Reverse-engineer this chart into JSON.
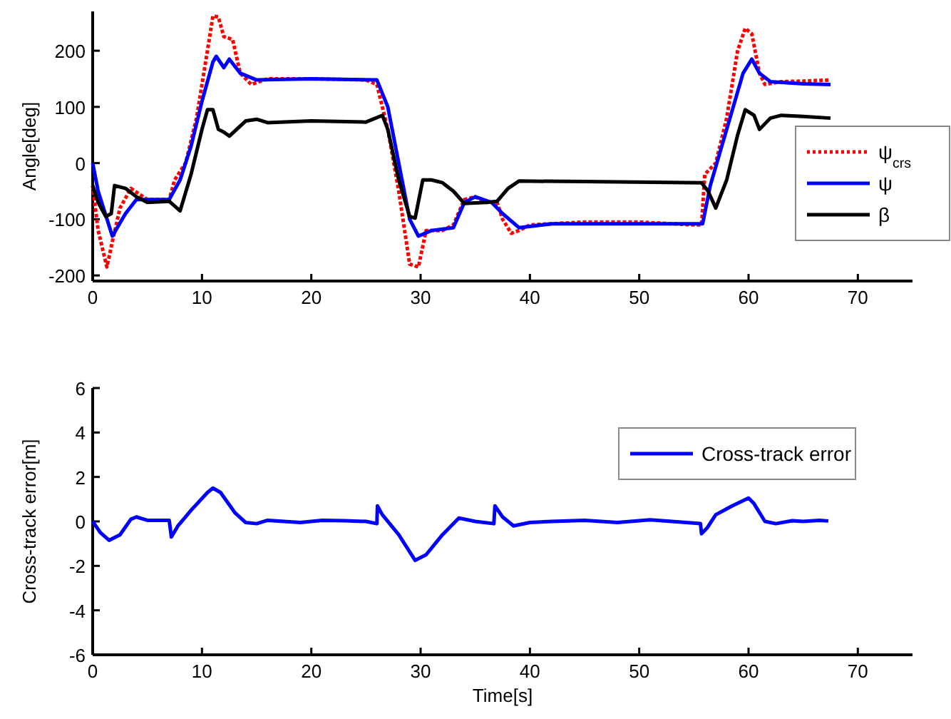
{
  "chart_data": [
    {
      "type": "line",
      "ylabel": "Angle[deg]",
      "xlim": [
        0,
        75
      ],
      "ylim": [
        -210,
        270
      ],
      "xticks": [
        0,
        10,
        20,
        30,
        40,
        50,
        60,
        70
      ],
      "yticks": [
        -200,
        -100,
        0,
        100,
        200
      ],
      "legend": "right",
      "series": [
        {
          "name": "ψ$_{crs}$",
          "color": "#ff0000",
          "line_style": "dotted",
          "x": [
            0,
            0.5,
            1.3,
            1.8,
            2.5,
            3.5,
            5,
            7,
            7.5,
            8.5,
            9.5,
            10.5,
            11,
            11.5,
            12,
            12.8,
            13.5,
            14.5,
            16,
            20,
            25,
            26,
            27,
            28,
            29,
            29.8,
            30.5,
            32,
            33,
            34,
            35,
            36,
            37,
            37.5,
            38.3,
            39,
            40,
            45,
            50,
            55,
            55.7,
            56,
            57,
            58,
            59,
            59.7,
            60.3,
            61,
            61.5,
            63,
            65,
            67.5
          ],
          "values": [
            -40,
            -120,
            -185,
            -140,
            -80,
            -45,
            -65,
            -65,
            -30,
            0,
            80,
            200,
            262,
            260,
            225,
            220,
            160,
            140,
            150,
            150,
            148,
            140,
            60,
            -50,
            -180,
            -185,
            -120,
            -120,
            -110,
            -65,
            -60,
            -70,
            -70,
            -100,
            -125,
            -120,
            -110,
            -105,
            -105,
            -110,
            -110,
            -20,
            0,
            80,
            200,
            240,
            230,
            160,
            140,
            145,
            146,
            148
          ]
        },
        {
          "name": "ψ",
          "color": "#0000ff",
          "line_style": "solid",
          "x": [
            0,
            0.5,
            1.8,
            3,
            4,
            5,
            7,
            8,
            9,
            10,
            11,
            11.3,
            12,
            12.5,
            13.5,
            15,
            20,
            26,
            27,
            28,
            29,
            29.8,
            31,
            33,
            34,
            35,
            36.5,
            37.5,
            39,
            42,
            50,
            55.8,
            56.5,
            58,
            59.5,
            60.3,
            61,
            62,
            65,
            67.5
          ],
          "values": [
            0,
            -50,
            -130,
            -90,
            -65,
            -65,
            -65,
            -30,
            30,
            110,
            180,
            190,
            170,
            185,
            160,
            148,
            150,
            148,
            100,
            0,
            -100,
            -130,
            -120,
            -115,
            -70,
            -60,
            -70,
            -90,
            -115,
            -108,
            -108,
            -108,
            -40,
            60,
            160,
            185,
            160,
            145,
            141,
            140
          ]
        },
        {
          "name": "β",
          "color": "#000000",
          "line_style": "solid",
          "x": [
            0,
            0.5,
            1.2,
            1.7,
            2,
            3,
            4,
            5,
            7,
            8,
            9,
            10,
            10.5,
            11,
            11.5,
            12,
            12.5,
            14,
            15,
            16,
            20,
            25,
            26.5,
            27,
            28,
            29,
            29.5,
            30.2,
            31,
            32,
            33,
            34,
            36,
            37,
            38,
            39,
            45,
            55.7,
            56.3,
            57,
            58,
            59,
            59.7,
            60.5,
            61,
            62,
            63,
            65,
            67.5
          ],
          "values": [
            -40,
            -70,
            -95,
            -90,
            -40,
            -45,
            -60,
            -70,
            -68,
            -85,
            -20,
            60,
            95,
            95,
            60,
            55,
            48,
            75,
            78,
            72,
            75,
            73,
            85,
            60,
            -30,
            -95,
            -98,
            -30,
            -30,
            -35,
            -50,
            -72,
            -70,
            -68,
            -45,
            -32,
            -33,
            -35,
            -50,
            -80,
            -30,
            50,
            95,
            85,
            60,
            80,
            85,
            83,
            80
          ]
        }
      ]
    },
    {
      "type": "line",
      "xlabel": "Time[s]",
      "ylabel": "Cross-track error[m]",
      "xlim": [
        0,
        75
      ],
      "ylim": [
        -6,
        6
      ],
      "xticks": [
        0,
        10,
        20,
        30,
        40,
        50,
        60,
        70
      ],
      "yticks": [
        -6,
        -4,
        -2,
        0,
        2,
        4,
        6
      ],
      "legend": "top right",
      "series": [
        {
          "name": "Cross-track error",
          "color": "#0000ff",
          "line_style": "solid",
          "x": [
            0,
            0.7,
            1.5,
            2.5,
            3.5,
            4,
            5,
            6,
            7,
            7.2,
            7.8,
            9,
            10.5,
            11,
            11.7,
            13,
            14,
            15,
            16,
            19,
            21,
            23,
            25,
            26,
            26.05,
            26.5,
            28,
            29.5,
            30.5,
            32,
            33.5,
            35,
            36.7,
            36.8,
            37.5,
            38.5,
            40,
            42,
            45,
            48,
            51,
            55.6,
            55.7,
            56.2,
            57,
            58.5,
            60,
            60.5,
            61.5,
            62.5,
            64,
            65,
            66.5,
            67.3
          ],
          "values": [
            0,
            -0.5,
            -0.85,
            -0.6,
            0.1,
            0.2,
            0.05,
            0.05,
            0.05,
            -0.7,
            -0.2,
            0.5,
            1.3,
            1.5,
            1.3,
            0.4,
            -0.05,
            -0.1,
            0.05,
            -0.05,
            0.05,
            0.03,
            0,
            -0.1,
            0.7,
            0.3,
            -0.6,
            -1.75,
            -1.5,
            -0.6,
            0.15,
            0,
            -0.1,
            0.7,
            0.2,
            -0.2,
            -0.05,
            0,
            0.05,
            -0.05,
            0.07,
            -0.1,
            -0.55,
            -0.3,
            0.3,
            0.7,
            1.05,
            0.8,
            0,
            -0.1,
            0.03,
            0,
            0.05,
            0.02
          ]
        }
      ]
    }
  ]
}
